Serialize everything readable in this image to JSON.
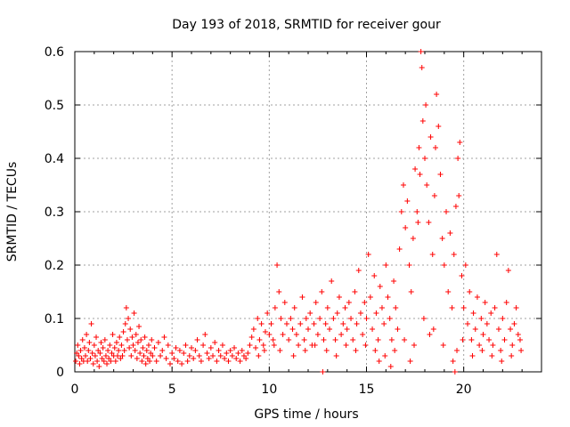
{
  "chart_data": {
    "type": "scatter",
    "title": "Day 193 of 2018, SRMTID for receiver gour",
    "xlabel": "GPS time / hours",
    "ylabel": "SRMTID / TECUs",
    "xlim": [
      0,
      24
    ],
    "ylim": [
      0,
      0.6
    ],
    "xticks": [
      0,
      5,
      10,
      15,
      20
    ],
    "yticks": [
      0,
      0.1,
      0.2,
      0.3,
      0.4,
      0.5,
      0.6
    ],
    "xtick_labels": [
      "0",
      "5",
      "10",
      "15",
      "20"
    ],
    "ytick_labels": [
      "0",
      "0.1",
      "0.2",
      "0.3",
      "0.4",
      "0.5",
      "0.6"
    ],
    "grid": true,
    "marker": "+",
    "color": "#ff0000",
    "series": [
      {
        "name": "SRMTID",
        "points": [
          [
            0.05,
            0.02
          ],
          [
            0.1,
            0.035
          ],
          [
            0.15,
            0.05
          ],
          [
            0.2,
            0.03
          ],
          [
            0.25,
            0.015
          ],
          [
            0.3,
            0.04
          ],
          [
            0.35,
            0.025
          ],
          [
            0.4,
            0.06
          ],
          [
            0.45,
            0.02
          ],
          [
            0.5,
            0.045
          ],
          [
            0.55,
            0.03
          ],
          [
            0.6,
            0.07
          ],
          [
            0.65,
            0.02
          ],
          [
            0.7,
            0.04
          ],
          [
            0.75,
            0.055
          ],
          [
            0.8,
            0.025
          ],
          [
            0.85,
            0.09
          ],
          [
            0.9,
            0.035
          ],
          [
            0.95,
            0.015
          ],
          [
            1.0,
            0.05
          ],
          [
            1.05,
            0.03
          ],
          [
            1.1,
            0.065
          ],
          [
            1.15,
            0.02
          ],
          [
            1.2,
            0.04
          ],
          [
            1.25,
            0.01
          ],
          [
            1.3,
            0.035
          ],
          [
            1.35,
            0.055
          ],
          [
            1.4,
            0.025
          ],
          [
            1.45,
            0.045
          ],
          [
            1.5,
            0.02
          ],
          [
            1.55,
            0.06
          ],
          [
            1.6,
            0.03
          ],
          [
            1.65,
            0.015
          ],
          [
            1.7,
            0.04
          ],
          [
            1.75,
            0.025
          ],
          [
            1.8,
            0.05
          ],
          [
            1.85,
            0.02
          ],
          [
            1.9,
            0.035
          ],
          [
            1.95,
            0.07
          ],
          [
            2.0,
            0.03
          ],
          [
            2.05,
            0.045
          ],
          [
            2.1,
            0.02
          ],
          [
            2.15,
            0.055
          ],
          [
            2.2,
            0.03
          ],
          [
            2.25,
            0.04
          ],
          [
            2.3,
            0.065
          ],
          [
            2.35,
            0.025
          ],
          [
            2.4,
            0.05
          ],
          [
            2.45,
            0.03
          ],
          [
            2.5,
            0.075
          ],
          [
            2.55,
            0.04
          ],
          [
            2.6,
            0.09
          ],
          [
            2.65,
            0.12
          ],
          [
            2.7,
            0.06
          ],
          [
            2.75,
            0.1
          ],
          [
            2.8,
            0.045
          ],
          [
            2.85,
            0.08
          ],
          [
            2.9,
            0.03
          ],
          [
            2.95,
            0.065
          ],
          [
            3.0,
            0.05
          ],
          [
            3.05,
            0.11
          ],
          [
            3.1,
            0.04
          ],
          [
            3.15,
            0.07
          ],
          [
            3.2,
            0.025
          ],
          [
            3.25,
            0.055
          ],
          [
            3.3,
            0.085
          ],
          [
            3.35,
            0.035
          ],
          [
            3.4,
            0.06
          ],
          [
            3.45,
            0.02
          ],
          [
            3.5,
            0.045
          ],
          [
            3.55,
            0.03
          ],
          [
            3.6,
            0.065
          ],
          [
            3.65,
            0.015
          ],
          [
            3.7,
            0.04
          ],
          [
            3.75,
            0.025
          ],
          [
            3.8,
            0.05
          ],
          [
            3.85,
            0.02
          ],
          [
            3.9,
            0.035
          ],
          [
            3.95,
            0.06
          ],
          [
            4.0,
            0.03
          ],
          [
            4.1,
            0.045
          ],
          [
            4.2,
            0.02
          ],
          [
            4.3,
            0.055
          ],
          [
            4.4,
            0.03
          ],
          [
            4.5,
            0.04
          ],
          [
            4.6,
            0.065
          ],
          [
            4.7,
            0.025
          ],
          [
            4.8,
            0.05
          ],
          [
            4.9,
            0.015
          ],
          [
            5.0,
            0.035
          ],
          [
            5.1,
            0.025
          ],
          [
            5.2,
            0.045
          ],
          [
            5.3,
            0.02
          ],
          [
            5.4,
            0.04
          ],
          [
            5.5,
            0.015
          ],
          [
            5.6,
            0.035
          ],
          [
            5.7,
            0.05
          ],
          [
            5.8,
            0.02
          ],
          [
            5.9,
            0.03
          ],
          [
            6.0,
            0.045
          ],
          [
            6.1,
            0.025
          ],
          [
            6.2,
            0.04
          ],
          [
            6.3,
            0.06
          ],
          [
            6.4,
            0.03
          ],
          [
            6.5,
            0.02
          ],
          [
            6.6,
            0.05
          ],
          [
            6.7,
            0.07
          ],
          [
            6.8,
            0.035
          ],
          [
            6.9,
            0.025
          ],
          [
            7.0,
            0.045
          ],
          [
            7.1,
            0.03
          ],
          [
            7.2,
            0.055
          ],
          [
            7.3,
            0.02
          ],
          [
            7.4,
            0.04
          ],
          [
            7.5,
            0.03
          ],
          [
            7.6,
            0.05
          ],
          [
            7.7,
            0.025
          ],
          [
            7.8,
            0.035
          ],
          [
            7.9,
            0.02
          ],
          [
            8.0,
            0.04
          ],
          [
            8.1,
            0.03
          ],
          [
            8.2,
            0.045
          ],
          [
            8.3,
            0.025
          ],
          [
            8.4,
            0.035
          ],
          [
            8.5,
            0.02
          ],
          [
            8.6,
            0.04
          ],
          [
            8.7,
            0.03
          ],
          [
            8.8,
            0.025
          ],
          [
            8.9,
            0.035
          ],
          [
            9.0,
            0.05
          ],
          [
            9.1,
            0.065
          ],
          [
            9.2,
            0.08
          ],
          [
            9.3,
            0.045
          ],
          [
            9.4,
            0.1
          ],
          [
            9.5,
            0.06
          ],
          [
            9.6,
            0.09
          ],
          [
            9.7,
            0.05
          ],
          [
            9.8,
            0.075
          ],
          [
            9.9,
            0.11
          ],
          [
            10.0,
            0.07
          ],
          [
            10.1,
            0.09
          ],
          [
            10.2,
            0.06
          ],
          [
            10.3,
            0.12
          ],
          [
            10.4,
            0.2
          ],
          [
            10.5,
            0.15
          ],
          [
            10.6,
            0.1
          ],
          [
            10.7,
            0.07
          ],
          [
            10.8,
            0.13
          ],
          [
            10.9,
            0.09
          ],
          [
            11.0,
            0.06
          ],
          [
            11.1,
            0.1
          ],
          [
            11.2,
            0.08
          ],
          [
            11.3,
            0.12
          ],
          [
            11.4,
            0.07
          ],
          [
            11.5,
            0.05
          ],
          [
            11.6,
            0.09
          ],
          [
            11.7,
            0.14
          ],
          [
            11.8,
            0.06
          ],
          [
            11.9,
            0.1
          ],
          [
            12.0,
            0.08
          ],
          [
            12.1,
            0.11
          ],
          [
            12.2,
            0.05
          ],
          [
            12.3,
            0.09
          ],
          [
            12.4,
            0.13
          ],
          [
            12.5,
            0.07
          ],
          [
            12.6,
            0.1
          ],
          [
            12.7,
            0.15
          ],
          [
            12.8,
            0.06
          ],
          [
            12.9,
            0.09
          ],
          [
            13.0,
            0.12
          ],
          [
            13.1,
            0.08
          ],
          [
            13.2,
            0.17
          ],
          [
            13.3,
            0.1
          ],
          [
            13.4,
            0.06
          ],
          [
            13.5,
            0.11
          ],
          [
            13.6,
            0.14
          ],
          [
            13.7,
            0.07
          ],
          [
            13.8,
            0.09
          ],
          [
            13.9,
            0.12
          ],
          [
            14.0,
            0.08
          ],
          [
            14.1,
            0.13
          ],
          [
            14.2,
            0.1
          ],
          [
            14.3,
            0.06
          ],
          [
            14.4,
            0.15
          ],
          [
            14.5,
            0.09
          ],
          [
            14.6,
            0.19
          ],
          [
            14.7,
            0.11
          ],
          [
            14.8,
            0.07
          ],
          [
            14.9,
            0.13
          ],
          [
            15.0,
            0.1
          ],
          [
            15.1,
            0.22
          ],
          [
            15.2,
            0.14
          ],
          [
            15.3,
            0.08
          ],
          [
            15.4,
            0.18
          ],
          [
            15.5,
            0.11
          ],
          [
            15.6,
            0.06
          ],
          [
            15.7,
            0.16
          ],
          [
            15.8,
            0.12
          ],
          [
            15.9,
            0.09
          ],
          [
            16.0,
            0.2
          ],
          [
            16.1,
            0.14
          ],
          [
            16.2,
            0.1
          ],
          [
            16.3,
            0.06
          ],
          [
            16.4,
            0.17
          ],
          [
            16.5,
            0.12
          ],
          [
            16.6,
            0.08
          ],
          [
            16.7,
            0.23
          ],
          [
            16.8,
            0.3
          ],
          [
            16.9,
            0.35
          ],
          [
            17.0,
            0.27
          ],
          [
            17.1,
            0.32
          ],
          [
            17.2,
            0.2
          ],
          [
            17.3,
            0.15
          ],
          [
            17.4,
            0.25
          ],
          [
            17.5,
            0.38
          ],
          [
            17.6,
            0.3
          ],
          [
            17.7,
            0.42
          ],
          [
            17.8,
            0.6
          ],
          [
            17.85,
            0.57
          ],
          [
            17.9,
            0.47
          ],
          [
            18.0,
            0.4
          ],
          [
            18.1,
            0.35
          ],
          [
            18.2,
            0.28
          ],
          [
            18.3,
            0.44
          ],
          [
            18.4,
            0.22
          ],
          [
            18.5,
            0.33
          ],
          [
            18.6,
            0.52
          ],
          [
            18.7,
            0.46
          ],
          [
            18.8,
            0.37
          ],
          [
            18.9,
            0.25
          ],
          [
            19.0,
            0.2
          ],
          [
            19.1,
            0.3
          ],
          [
            19.2,
            0.15
          ],
          [
            19.3,
            0.26
          ],
          [
            19.4,
            0.12
          ],
          [
            19.5,
            0.22
          ],
          [
            19.6,
            0.31
          ],
          [
            19.7,
            0.4
          ],
          [
            19.8,
            0.43
          ],
          [
            19.9,
            0.18
          ],
          [
            20.0,
            0.12
          ],
          [
            20.1,
            0.2
          ],
          [
            20.2,
            0.09
          ],
          [
            20.3,
            0.15
          ],
          [
            20.4,
            0.06
          ],
          [
            20.5,
            0.11
          ],
          [
            20.6,
            0.08
          ],
          [
            20.7,
            0.14
          ],
          [
            20.8,
            0.05
          ],
          [
            20.9,
            0.1
          ],
          [
            21.0,
            0.07
          ],
          [
            21.1,
            0.13
          ],
          [
            21.2,
            0.09
          ],
          [
            21.3,
            0.06
          ],
          [
            21.4,
            0.11
          ],
          [
            21.5,
            0.05
          ],
          [
            21.6,
            0.12
          ],
          [
            21.7,
            0.22
          ],
          [
            21.8,
            0.08
          ],
          [
            21.9,
            0.04
          ],
          [
            22.0,
            0.1
          ],
          [
            22.1,
            0.06
          ],
          [
            22.2,
            0.13
          ],
          [
            22.3,
            0.19
          ],
          [
            22.4,
            0.08
          ],
          [
            22.5,
            0.05
          ],
          [
            22.6,
            0.09
          ],
          [
            22.7,
            0.12
          ],
          [
            22.8,
            0.07
          ],
          [
            22.9,
            0.06
          ],
          [
            9.45,
            0.03
          ],
          [
            9.75,
            0.04
          ],
          [
            10.25,
            0.05
          ],
          [
            10.55,
            0.04
          ],
          [
            11.25,
            0.03
          ],
          [
            11.85,
            0.04
          ],
          [
            12.35,
            0.05
          ],
          [
            12.95,
            0.04
          ],
          [
            13.45,
            0.03
          ],
          [
            13.95,
            0.05
          ],
          [
            14.45,
            0.04
          ],
          [
            14.95,
            0.05
          ],
          [
            15.45,
            0.04
          ],
          [
            15.95,
            0.03
          ],
          [
            16.45,
            0.04
          ],
          [
            16.95,
            0.06
          ],
          [
            17.45,
            0.05
          ],
          [
            17.95,
            0.1
          ],
          [
            18.45,
            0.08
          ],
          [
            18.95,
            0.05
          ],
          [
            19.45,
            0.02
          ],
          [
            19.55,
            0.0
          ],
          [
            19.65,
            0.04
          ],
          [
            19.95,
            0.06
          ],
          [
            20.45,
            0.03
          ],
          [
            20.95,
            0.04
          ],
          [
            21.45,
            0.03
          ],
          [
            21.95,
            0.02
          ],
          [
            22.45,
            0.03
          ],
          [
            22.95,
            0.04
          ],
          [
            16.25,
            0.01
          ],
          [
            17.25,
            0.02
          ],
          [
            12.75,
            0.0
          ],
          [
            15.65,
            0.02
          ],
          [
            18.25,
            0.07
          ],
          [
            17.65,
            0.28
          ],
          [
            18.05,
            0.5
          ],
          [
            18.55,
            0.42
          ],
          [
            17.75,
            0.37
          ],
          [
            19.75,
            0.33
          ]
        ]
      }
    ]
  }
}
